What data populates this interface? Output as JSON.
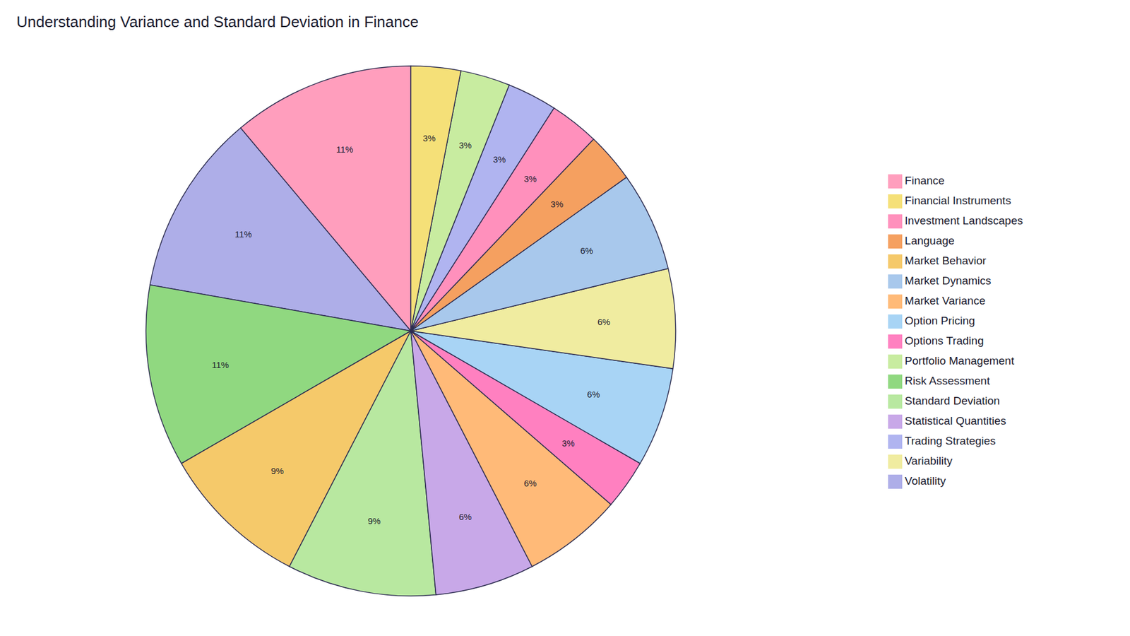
{
  "chart_data": {
    "type": "pie",
    "title": "Understanding Variance and Standard Deviation in Finance",
    "categories": [
      "Finance",
      "Volatility",
      "Risk Assessment",
      "Market Behavior",
      "Standard Deviation",
      "Statistical Quantities",
      "Market Variance",
      "Options Trading",
      "Option Pricing",
      "Variability",
      "Market Dynamics",
      "Language",
      "Investment Landscapes",
      "Trading Strategies",
      "Portfolio Management",
      "Financial Instruments"
    ],
    "values": [
      11,
      11,
      11,
      9,
      9,
      6,
      6,
      3,
      6,
      6,
      6,
      3,
      3,
      3,
      3,
      3
    ],
    "value_labels": [
      "11%",
      "11%",
      "11%",
      "9%",
      "9%",
      "6%",
      "6%",
      "3%",
      "6%",
      "6%",
      "6%",
      "3%",
      "3%",
      "3%",
      "3%",
      "3%"
    ],
    "colors": [
      "#FF9EBD",
      "#AEAEE8",
      "#90D880",
      "#F5C96A",
      "#B8E8A0",
      "#C8A8E8",
      "#FFBA78",
      "#FF80C0",
      "#A8D4F5",
      "#F0ECA0",
      "#A8C8EC",
      "#F5A060",
      "#FF90BC",
      "#B0B4F0",
      "#C8ECA0",
      "#F5E078"
    ],
    "data_labels": true,
    "legend": "right"
  }
}
